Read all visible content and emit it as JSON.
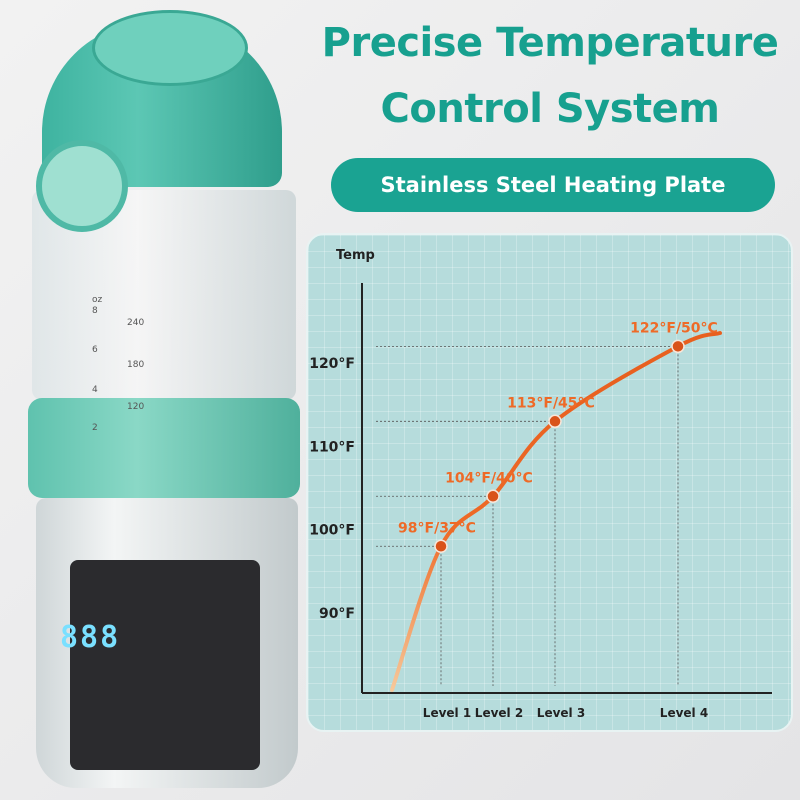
{
  "header": {
    "title_line1": "Precise Temperature",
    "title_line2": "Control System",
    "badge": "Stainless Steel Heating Plate"
  },
  "product": {
    "scale_ml": [
      "240",
      "180",
      "120"
    ],
    "scale_oz": [
      "oz",
      "8",
      "6",
      "4",
      "2"
    ],
    "display": "888"
  },
  "colors": {
    "brand": "#17a08f",
    "curve": "#ee6a27",
    "point": "#d9531a",
    "chart_bg": "#b6dcdc"
  },
  "chart_data": {
    "type": "line",
    "ylabel": "Temp",
    "yticks": [
      "90°F",
      "100°F",
      "110°F",
      "120°F"
    ],
    "ytick_values": [
      90,
      100,
      110,
      120
    ],
    "categories": [
      "Level 1",
      "Level 2",
      "Level 3",
      "Level 4"
    ],
    "values": [
      98,
      104,
      113,
      122
    ],
    "point_labels": [
      "98°F/37°C",
      "104°F/40°C",
      "113°F/45°C",
      "122°F/50°C"
    ],
    "grid": true
  }
}
